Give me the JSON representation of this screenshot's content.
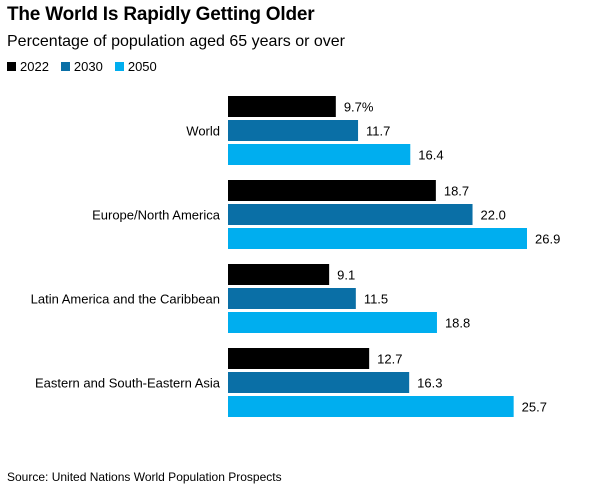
{
  "chart_data": {
    "type": "bar",
    "orientation": "horizontal",
    "title": "The World Is Rapidly Getting Older",
    "subtitle": "Percentage of population aged 65 years or over",
    "categories": [
      "World",
      "Europe/North America",
      "Latin America and the Caribbean",
      "Eastern and South-Eastern Asia"
    ],
    "series": [
      {
        "name": "2022",
        "color": "#000000",
        "values": [
          9.7,
          18.7,
          9.1,
          12.7
        ],
        "labels": [
          "9.7%",
          "18.7",
          "9.1",
          "12.7"
        ]
      },
      {
        "name": "2030",
        "color": "#0A6FA6",
        "values": [
          11.7,
          22.0,
          11.5,
          16.3
        ],
        "labels": [
          "11.7",
          "22.0",
          "11.5",
          "16.3"
        ]
      },
      {
        "name": "2050",
        "color": "#00AEEF",
        "values": [
          16.4,
          26.9,
          18.8,
          25.7
        ],
        "labels": [
          "16.4",
          "26.9",
          "18.8",
          "25.7"
        ]
      }
    ],
    "xlim": [
      0,
      26.9
    ],
    "grid": false,
    "legend_position": "top-left",
    "source": "Source: United Nations World Population Prospects"
  }
}
